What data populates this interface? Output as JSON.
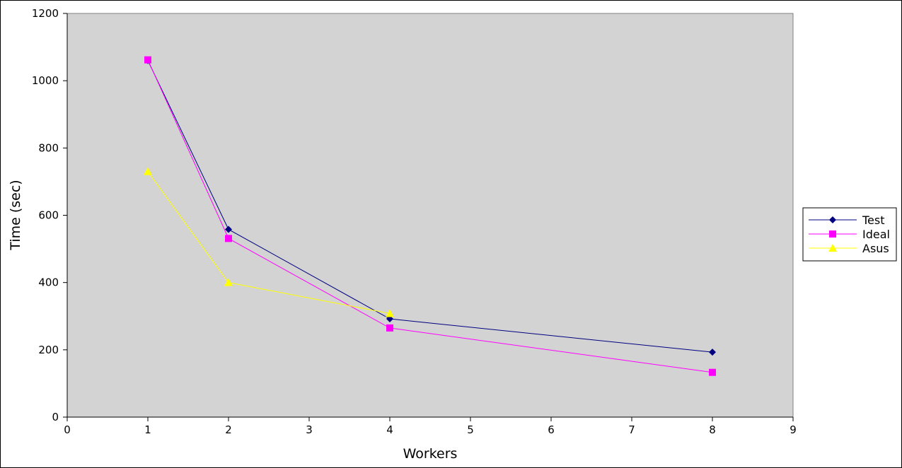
{
  "chart_data": {
    "type": "line",
    "title": "",
    "xlabel": "Workers",
    "ylabel": "Time (sec)",
    "xlim": [
      0,
      9
    ],
    "ylim": [
      0,
      1200
    ],
    "x_ticks": [
      0,
      1,
      2,
      3,
      4,
      5,
      6,
      7,
      8,
      9
    ],
    "y_ticks": [
      0,
      200,
      400,
      600,
      800,
      1000,
      1200
    ],
    "grid": false,
    "plot_background": "#d3d3d3",
    "legend_position": "right",
    "series": [
      {
        "name": "Test",
        "color": "#000080",
        "marker": "diamond",
        "x": [
          1,
          2,
          4,
          8
        ],
        "y": [
          1060,
          558,
          292,
          193
        ]
      },
      {
        "name": "Ideal",
        "color": "#ff00ff",
        "marker": "square",
        "x": [
          1,
          2,
          4,
          8
        ],
        "y": [
          1062,
          531,
          265,
          133
        ]
      },
      {
        "name": "Asus",
        "color": "#ffff00",
        "marker": "triangle",
        "x": [
          1,
          2,
          4
        ],
        "y": [
          730,
          400,
          308
        ]
      }
    ]
  }
}
